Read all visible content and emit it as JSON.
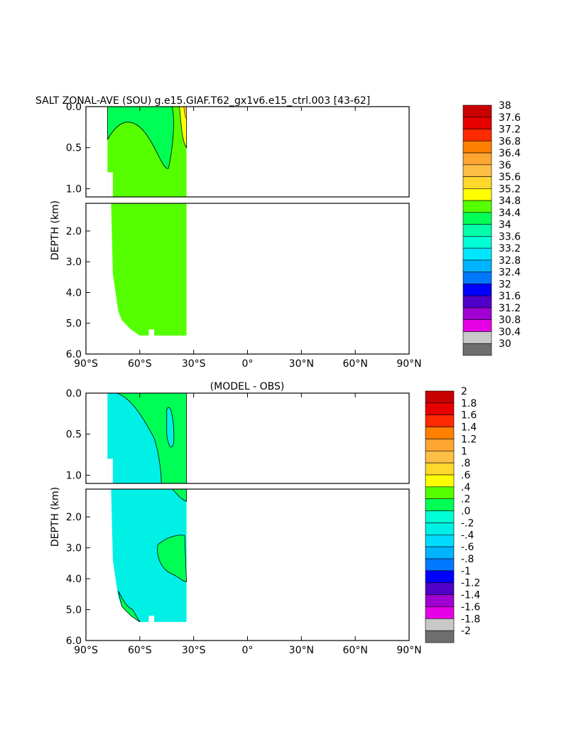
{
  "title": "SALT ZONAL-AVE (SOU) g.e15.GIAF.T62_gx1v6.e15_ctrl.003  [43-62]",
  "chart_data": [
    {
      "type": "heatmap",
      "title": "SALT ZONAL-AVE (SOU) g.e15.GIAF.T62_gx1v6.e15_ctrl.003  [43-62]",
      "xlabel": "",
      "ylabel": "DEPTH (km)",
      "x_ticks": [
        "90°S",
        "60°S",
        "30°S",
        "0°",
        "30°N",
        "60°N",
        "90°N"
      ],
      "y_ticks_upper": [
        "0.0",
        "0.5",
        "1.0"
      ],
      "y_ticks_lower": [
        "2.0",
        "3.0",
        "4.0",
        "5.0",
        "6.0"
      ],
      "xlim": [
        -90,
        90
      ],
      "ylim_km": [
        6.0,
        0.0
      ],
      "data_extent_lat": [
        -78,
        -34
      ],
      "grid": false,
      "colorbar": {
        "labels": [
          "38",
          "37.6",
          "37.2",
          "36.8",
          "36.4",
          "36",
          "35.6",
          "35.2",
          "34.8",
          "34.4",
          "34",
          "33.6",
          "33.2",
          "32.8",
          "32.4",
          "32",
          "31.6",
          "31.2",
          "30.8",
          "30.4",
          "30"
        ],
        "colors": [
          "#c80000",
          "#e60000",
          "#ff2a00",
          "#ff7f00",
          "#ffa532",
          "#ffbe46",
          "#ffd82d",
          "#ffff00",
          "#55ff00",
          "#00ff55",
          "#00ffaa",
          "#00ffd4",
          "#00e6ff",
          "#00b4ff",
          "#0078ff",
          "#0000ff",
          "#5000c8",
          "#a000d2",
          "#e600e6",
          "#c8c8c8",
          "#6e6e6e"
        ]
      },
      "dominant_value_range": "34.4-34.8",
      "annotations": [
        "34.0-34.4 near surface 70°S-45°S",
        "34.8-35.6 near surface 36°S-33°S"
      ]
    },
    {
      "type": "heatmap",
      "title": "(MODEL - OBS)",
      "xlabel": "",
      "ylabel": "DEPTH (km)",
      "x_ticks": [
        "90°S",
        "60°S",
        "30°S",
        "0°",
        "30°N",
        "60°N",
        "90°N"
      ],
      "y_ticks_upper": [
        "0.0",
        "0.5",
        "1.0"
      ],
      "y_ticks_lower": [
        "2.0",
        "3.0",
        "4.0",
        "5.0",
        "6.0"
      ],
      "xlim": [
        -90,
        90
      ],
      "ylim_km": [
        6.0,
        0.0
      ],
      "data_extent_lat": [
        -78,
        -34
      ],
      "grid": false,
      "colorbar": {
        "labels": [
          "2",
          "1.8",
          "1.6",
          "1.4",
          "1.2",
          "1",
          ".8",
          ".6",
          ".4",
          ".2",
          ".0",
          "-.2",
          "-.4",
          "-.6",
          "-.8",
          "-1",
          "-1.2",
          "-1.4",
          "-1.6",
          "-1.8",
          "-2"
        ],
        "colors": [
          "#c80000",
          "#e60000",
          "#ff2a00",
          "#ff7f00",
          "#ffa532",
          "#ffbe46",
          "#ffd82d",
          "#ffff00",
          "#55ff00",
          "#00ff55",
          "#00ffd4",
          "#00f0e6",
          "#00dcff",
          "#00b4ff",
          "#0078ff",
          "#0000ff",
          "#5000c8",
          "#a000d2",
          "#e600e6",
          "#c8c8c8",
          "#6e6e6e"
        ]
      },
      "dominant_value_range": "-.2-.0",
      "annotations": [
        "0.0-0.2 upper ocean 60°S-33°S",
        "0.0-0.2 patch 2.6-4.0 km near 50°S-35°S",
        "0.0-0.2 deep near 70°S-60°S"
      ]
    }
  ]
}
